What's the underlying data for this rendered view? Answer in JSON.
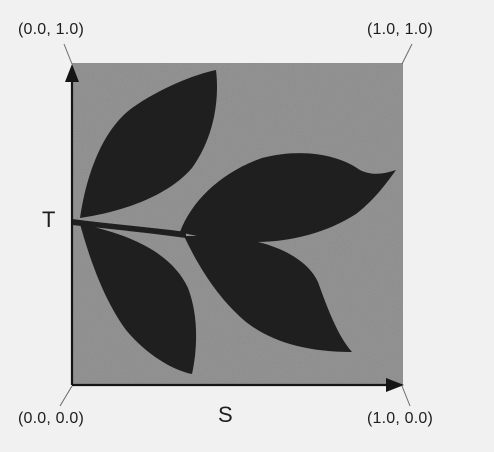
{
  "corners": {
    "top_left": "(0.0, 1.0)",
    "top_right": "(1.0, 1.0)",
    "bottom_left": "(0.0, 0.0)",
    "bottom_right": "(1.0, 0.0)"
  },
  "axes": {
    "vertical": "T",
    "horizontal": "S"
  },
  "colors": {
    "page": "#f1f1f1",
    "texture": "#8c8c8c",
    "leaf": "#1f1f1f",
    "axis": "#151515"
  }
}
